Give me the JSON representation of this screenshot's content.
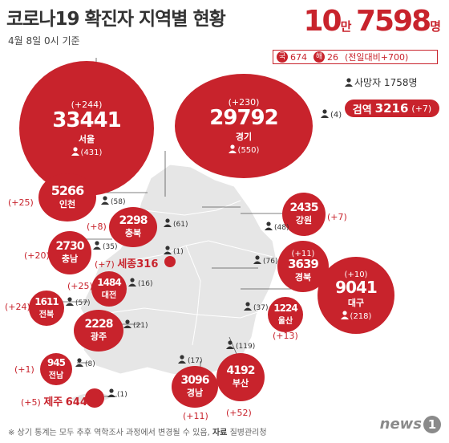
{
  "header": {
    "title": "코로나19 확진자 지역별 현황",
    "date": "4월 8일 0시 기준",
    "total_big1": "10",
    "total_man": "만",
    "total_big2": "7598",
    "total_unit": "명"
  },
  "summary": {
    "domestic_label": "국",
    "domestic_value": "674",
    "overseas_label": "해",
    "overseas_value": "26",
    "change_text": "(전일대비+700)"
  },
  "deaths": "사망자 1758명",
  "quarantine": {
    "label": "검역",
    "value": "3216",
    "increase": "(+7)",
    "deaths": "(4)"
  },
  "regions": {
    "seoul": {
      "inc": "(+244)",
      "num": "33441",
      "name": "서울",
      "deaths": "(431)"
    },
    "gyeonggi": {
      "inc": "(+230)",
      "num": "29792",
      "name": "경기",
      "deaths": "(550)"
    },
    "incheon": {
      "inc": "(+25)",
      "num": "5266",
      "name": "인천",
      "deaths": "(58)"
    },
    "gangwon": {
      "inc": "(+7)",
      "num": "2435",
      "name": "강원",
      "deaths": "(48)"
    },
    "chungbuk": {
      "inc": "(+8)",
      "num": "2298",
      "name": "충북",
      "deaths": "(61)"
    },
    "chungnam": {
      "inc": "(+20)",
      "num": "2730",
      "name": "충남",
      "deaths": "(35)"
    },
    "sejong": {
      "inc": "(+7)",
      "name": "세종",
      "num": "316",
      "deaths": "(1)"
    },
    "daejeon": {
      "inc": "(+25)",
      "num": "1484",
      "name": "대전",
      "deaths": "(16)"
    },
    "gyeongbuk": {
      "inc": "(+11)",
      "num": "3639",
      "name": "경북",
      "deaths": "(76)"
    },
    "daegu": {
      "inc": "(+10)",
      "num": "9041",
      "name": "대구",
      "deaths": "(218)"
    },
    "jeonbuk": {
      "inc": "(+24)",
      "num": "1611",
      "name": "전북",
      "deaths": "(57)"
    },
    "ulsan": {
      "inc": "(+13)",
      "num": "1224",
      "name": "울산",
      "deaths": "(37)"
    },
    "gwangju": {
      "num": "2228",
      "name": "광주",
      "deaths": "(21)"
    },
    "jeonnam": {
      "inc": "(+1)",
      "num": "945",
      "name": "전남",
      "deaths": "(8)"
    },
    "gyeongnam": {
      "inc": "(+11)",
      "num": "3096",
      "name": "경남",
      "deaths": "(17)"
    },
    "busan": {
      "inc": "(+52)",
      "num": "4192",
      "name": "부산",
      "deaths": "(119)"
    },
    "jeju": {
      "inc": "(+5)",
      "name": "제주",
      "num": "644",
      "deaths": "(1)"
    }
  },
  "footer": {
    "note": "※ 상기 통계는 모두 추후 역학조사 과정에서 변경될 수 있음,",
    "source_label": "자료",
    "source": "질병관리청",
    "logo": "news",
    "logo_num": "1"
  },
  "colors": {
    "accent": "#c8232c",
    "map": "#e6e6e6"
  }
}
